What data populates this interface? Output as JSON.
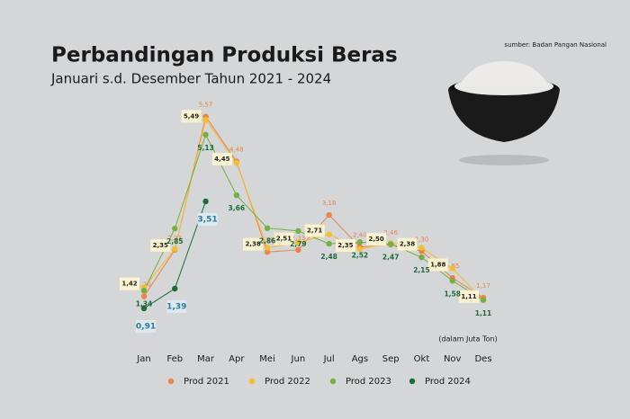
{
  "chart_data": {
    "type": "line",
    "title": "Perbandingan Produksi Beras",
    "subtitle": "Januari s.d. Desember Tahun 2021 - 2024",
    "source": "sumber: Badan Pangan Nasional",
    "unit_note": "(dalam Juta Ton)",
    "categories": [
      "Jan",
      "Feb",
      "Mar",
      "Apr",
      "Mei",
      "Jun",
      "Jul",
      "Ags",
      "Sep",
      "Okt",
      "Nov",
      "Des"
    ],
    "ylim": [
      0.1,
      6
    ],
    "series": [
      {
        "name": "Prod 2021",
        "color": "#e8844c",
        "values": [
          1.2,
          2.33,
          5.57,
          4.48,
          2.28,
          2.33,
          3.18,
          2.4,
          2.46,
          2.3,
          1.65,
          1.17
        ],
        "value_labels": [
          "1,20",
          "2,33",
          "5,57",
          "4,48",
          "2,28",
          "2,33",
          "3,18",
          "2,40",
          "2,46",
          "2,30",
          "1,65",
          "1,17"
        ]
      },
      {
        "name": "Prod 2022",
        "color": "#f5bd2a",
        "values": [
          1.42,
          2.35,
          5.49,
          4.45,
          2.38,
          2.51,
          2.71,
          2.35,
          2.5,
          2.38,
          1.88,
          1.11
        ],
        "value_labels": [
          "1,42",
          "2,35",
          "5,49",
          "4,45",
          "2,38",
          "2,51",
          "2,71",
          "2,35",
          "2,50",
          "2,38",
          "1,88",
          "1,11"
        ]
      },
      {
        "name": "Prod 2023",
        "color": "#76b043",
        "values": [
          1.34,
          2.85,
          5.13,
          3.66,
          2.86,
          2.79,
          2.48,
          2.52,
          2.47,
          2.15,
          1.58,
          1.11
        ],
        "value_labels": [
          "1,34",
          "2,85",
          "5,13",
          "3,66",
          "2,86",
          "2,79",
          "2,48",
          "2,52",
          "2,47",
          "2,15",
          "1,58",
          "1,11"
        ]
      },
      {
        "name": "Prod 2024",
        "color": "#1d6b3b",
        "values": [
          0.91,
          1.39,
          3.51,
          null,
          null,
          null,
          null,
          null,
          null,
          null,
          null,
          null
        ],
        "value_labels": [
          "0,91",
          "1,39",
          "3,51",
          null,
          null,
          null,
          null,
          null,
          null,
          null,
          null,
          null
        ]
      }
    ]
  }
}
